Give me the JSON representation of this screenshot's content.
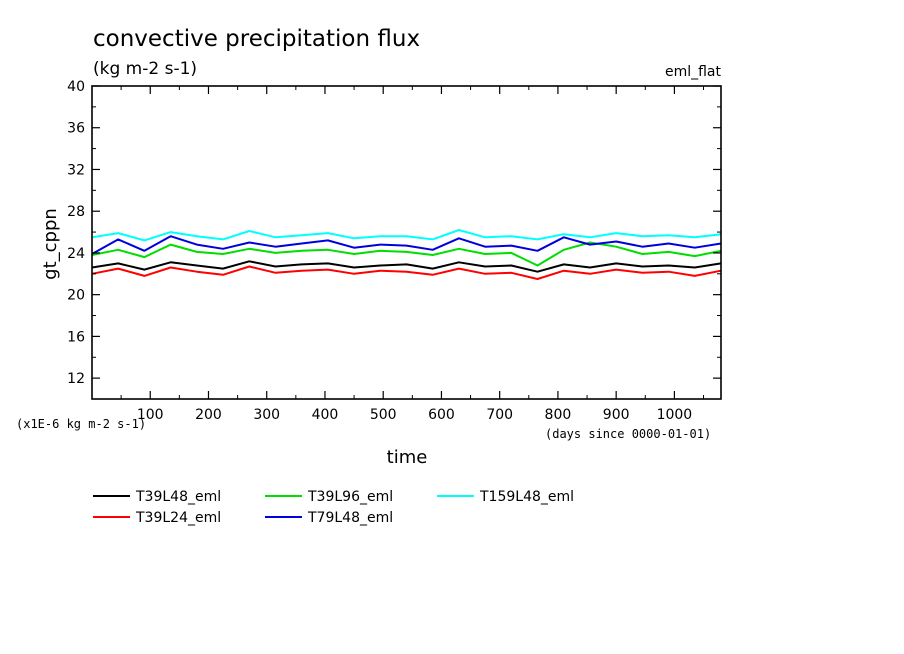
{
  "chart_data": {
    "type": "line",
    "title": "convective precipitation flux",
    "subtitle": "(kg m-2 s-1)",
    "tag": "eml_flat",
    "ylabel": "gt_cppn",
    "xlabel": "time",
    "yscale_note": "(x1E-6 kg m-2 s-1)",
    "xunit_note": "(days since 0000-01-01)",
    "xlim": [
      0,
      1080
    ],
    "ylim": [
      10,
      40
    ],
    "xticks": [
      100,
      200,
      300,
      400,
      500,
      600,
      700,
      800,
      900,
      1000
    ],
    "xtick_labels": [
      "100",
      "200",
      "300",
      "400",
      "500",
      "600",
      "700",
      "800",
      "900",
      "1000"
    ],
    "yticks": [
      12,
      16,
      20,
      24,
      28,
      32,
      36,
      40
    ],
    "ytick_labels": [
      "12",
      "16",
      "20",
      "24",
      "28",
      "32",
      "36",
      "40"
    ],
    "x": [
      0,
      45,
      90,
      135,
      180,
      225,
      270,
      315,
      360,
      405,
      450,
      495,
      540,
      585,
      630,
      675,
      720,
      765,
      810,
      855,
      900,
      945,
      990,
      1035,
      1080
    ],
    "series": [
      {
        "name": "T39L48_eml",
        "color": "#000000",
        "values": [
          22.6,
          23.0,
          22.4,
          23.1,
          22.8,
          22.5,
          23.2,
          22.7,
          22.9,
          23.0,
          22.6,
          22.8,
          22.9,
          22.5,
          23.1,
          22.7,
          22.8,
          22.2,
          22.9,
          22.6,
          23.0,
          22.7,
          22.8,
          22.6,
          23.0
        ]
      },
      {
        "name": "T39L24_eml",
        "color": "#ff0000",
        "values": [
          22.0,
          22.5,
          21.8,
          22.6,
          22.2,
          21.9,
          22.7,
          22.1,
          22.3,
          22.4,
          22.0,
          22.3,
          22.2,
          21.9,
          22.5,
          22.0,
          22.1,
          21.5,
          22.3,
          22.0,
          22.4,
          22.1,
          22.2,
          21.8,
          22.3
        ]
      },
      {
        "name": "T39L96_eml",
        "color": "#00dd00",
        "values": [
          23.8,
          24.3,
          23.6,
          24.8,
          24.1,
          23.9,
          24.4,
          24.0,
          24.2,
          24.3,
          23.9,
          24.2,
          24.1,
          23.8,
          24.4,
          23.9,
          24.0,
          22.8,
          24.3,
          25.0,
          24.6,
          23.9,
          24.1,
          23.7,
          24.2
        ]
      },
      {
        "name": "T79L48_eml",
        "color": "#0000dd",
        "values": [
          23.9,
          25.3,
          24.2,
          25.6,
          24.8,
          24.4,
          25.0,
          24.6,
          24.9,
          25.2,
          24.5,
          24.8,
          24.7,
          24.3,
          25.4,
          24.6,
          24.7,
          24.2,
          25.5,
          24.8,
          25.1,
          24.6,
          24.9,
          24.5,
          24.9
        ]
      },
      {
        "name": "T159L48_eml",
        "color": "#00ffff",
        "values": [
          25.5,
          25.9,
          25.2,
          26.0,
          25.6,
          25.3,
          26.1,
          25.5,
          25.7,
          25.9,
          25.4,
          25.6,
          25.6,
          25.3,
          26.2,
          25.5,
          25.6,
          25.3,
          25.8,
          25.5,
          25.9,
          25.6,
          25.7,
          25.5,
          25.8
        ]
      }
    ],
    "legend_position": "bottom-left",
    "grid": false
  }
}
